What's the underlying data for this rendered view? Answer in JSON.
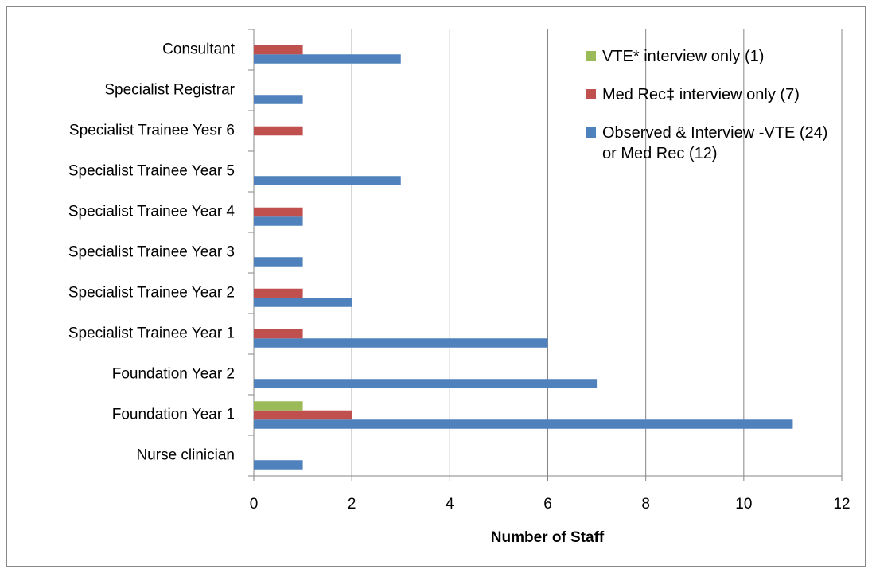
{
  "chart_data": {
    "type": "bar",
    "orientation": "horizontal",
    "x_label": "Number of Staff",
    "categories": [
      "Nurse clinician",
      "Foundation Year 1",
      "Foundation Year 2",
      "Specialist Trainee  Year 1",
      "Specialist Trainee  Year 2",
      "Specialist Trainee Year 3",
      "Specialist Trainee Year 4",
      "Specialist Trainee Year 5",
      "Specialist Trainee Yesr 6",
      "Specialist Registrar",
      "Consultant"
    ],
    "series": [
      {
        "name": "Observed & Interview -VTE (24) or Med Rec (12)",
        "color": "#4f81bd",
        "values": [
          1,
          11,
          7,
          6,
          2,
          1,
          1,
          3,
          0,
          1,
          3
        ]
      },
      {
        "name": "Med Rec‡ interview only (7)",
        "color": "#c0504d",
        "values": [
          0,
          2,
          0,
          1,
          1,
          0,
          1,
          0,
          1,
          0,
          1
        ]
      },
      {
        "name": "VTE* interview only (1)",
        "color": "#9bbb59",
        "values": [
          0,
          1,
          0,
          0,
          0,
          0,
          0,
          0,
          0,
          0,
          0
        ]
      }
    ],
    "xlim": [
      0,
      12
    ],
    "xticks": [
      0,
      2,
      4,
      6,
      8,
      10,
      12
    ],
    "grid": true,
    "legend": "upper right"
  }
}
